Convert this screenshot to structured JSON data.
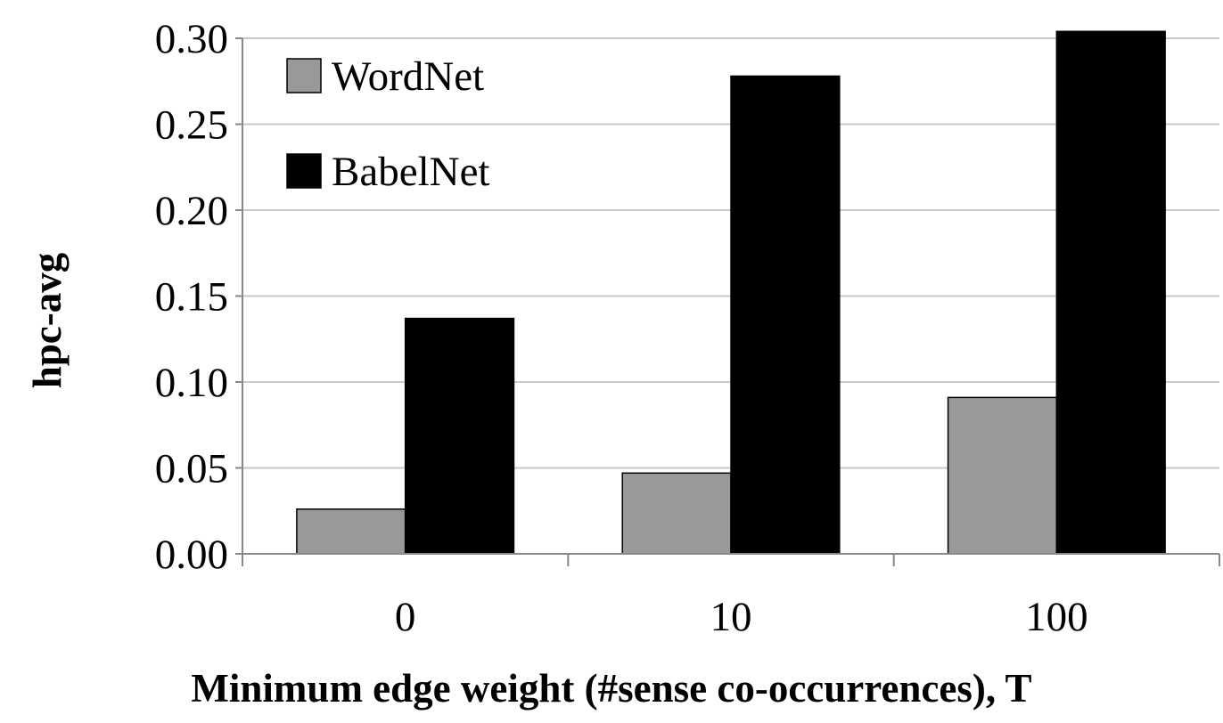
{
  "chart_data": {
    "type": "bar",
    "categories": [
      "0",
      "10",
      "100"
    ],
    "series": [
      {
        "name": "WordNet",
        "values": [
          0.026,
          0.047,
          0.091
        ],
        "color": "#999999"
      },
      {
        "name": "BabelNet",
        "values": [
          0.137,
          0.278,
          0.304
        ],
        "color": "#000000"
      }
    ],
    "title": "",
    "xlabel": "Minimum edge weight (#sense co-occurrences), T",
    "ylabel": "hpc-avg",
    "ylim": [
      0,
      0.3
    ],
    "yticks": [
      "0.00",
      "0.05",
      "0.10",
      "0.15",
      "0.20",
      "0.25",
      "0.30"
    ],
    "grid": true,
    "legend_position": "top-left",
    "colors": {
      "gridline": "#c8c8c8",
      "axis": "#888888",
      "bar_stroke": "#000000"
    }
  }
}
